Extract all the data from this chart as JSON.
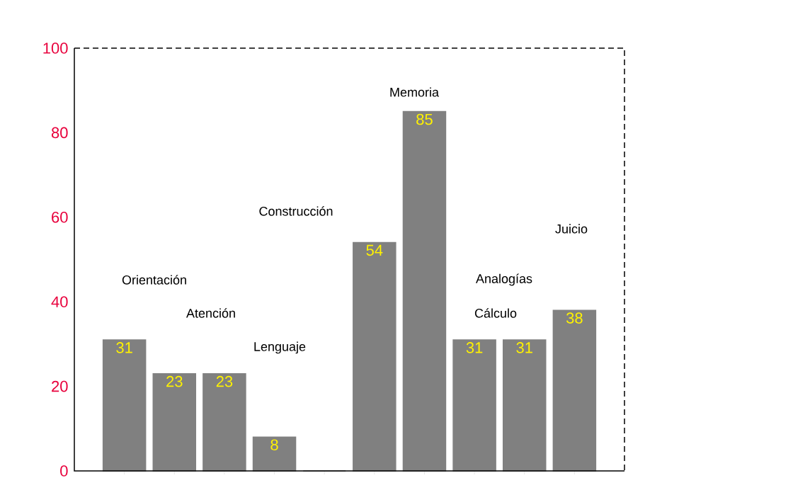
{
  "chart_data": {
    "type": "bar",
    "categories": [
      null,
      null,
      null,
      null,
      null,
      null,
      null,
      null,
      null,
      null
    ],
    "values": [
      31,
      23,
      23,
      8,
      0,
      54,
      85,
      31,
      31,
      38
    ],
    "value_labels": [
      "31",
      "23",
      "23",
      "8",
      null,
      "54",
      "85",
      "31",
      "31",
      "38"
    ],
    "color": "#808080",
    "ylim": [
      0,
      100
    ],
    "yticks": [
      0,
      20,
      40,
      60,
      80,
      100
    ],
    "annotations": [
      "Orientación",
      "Atención",
      "Lenguaje",
      "Construcción",
      "Memoria",
      "Analogías",
      "Cálculo",
      "Juicio"
    ]
  }
}
